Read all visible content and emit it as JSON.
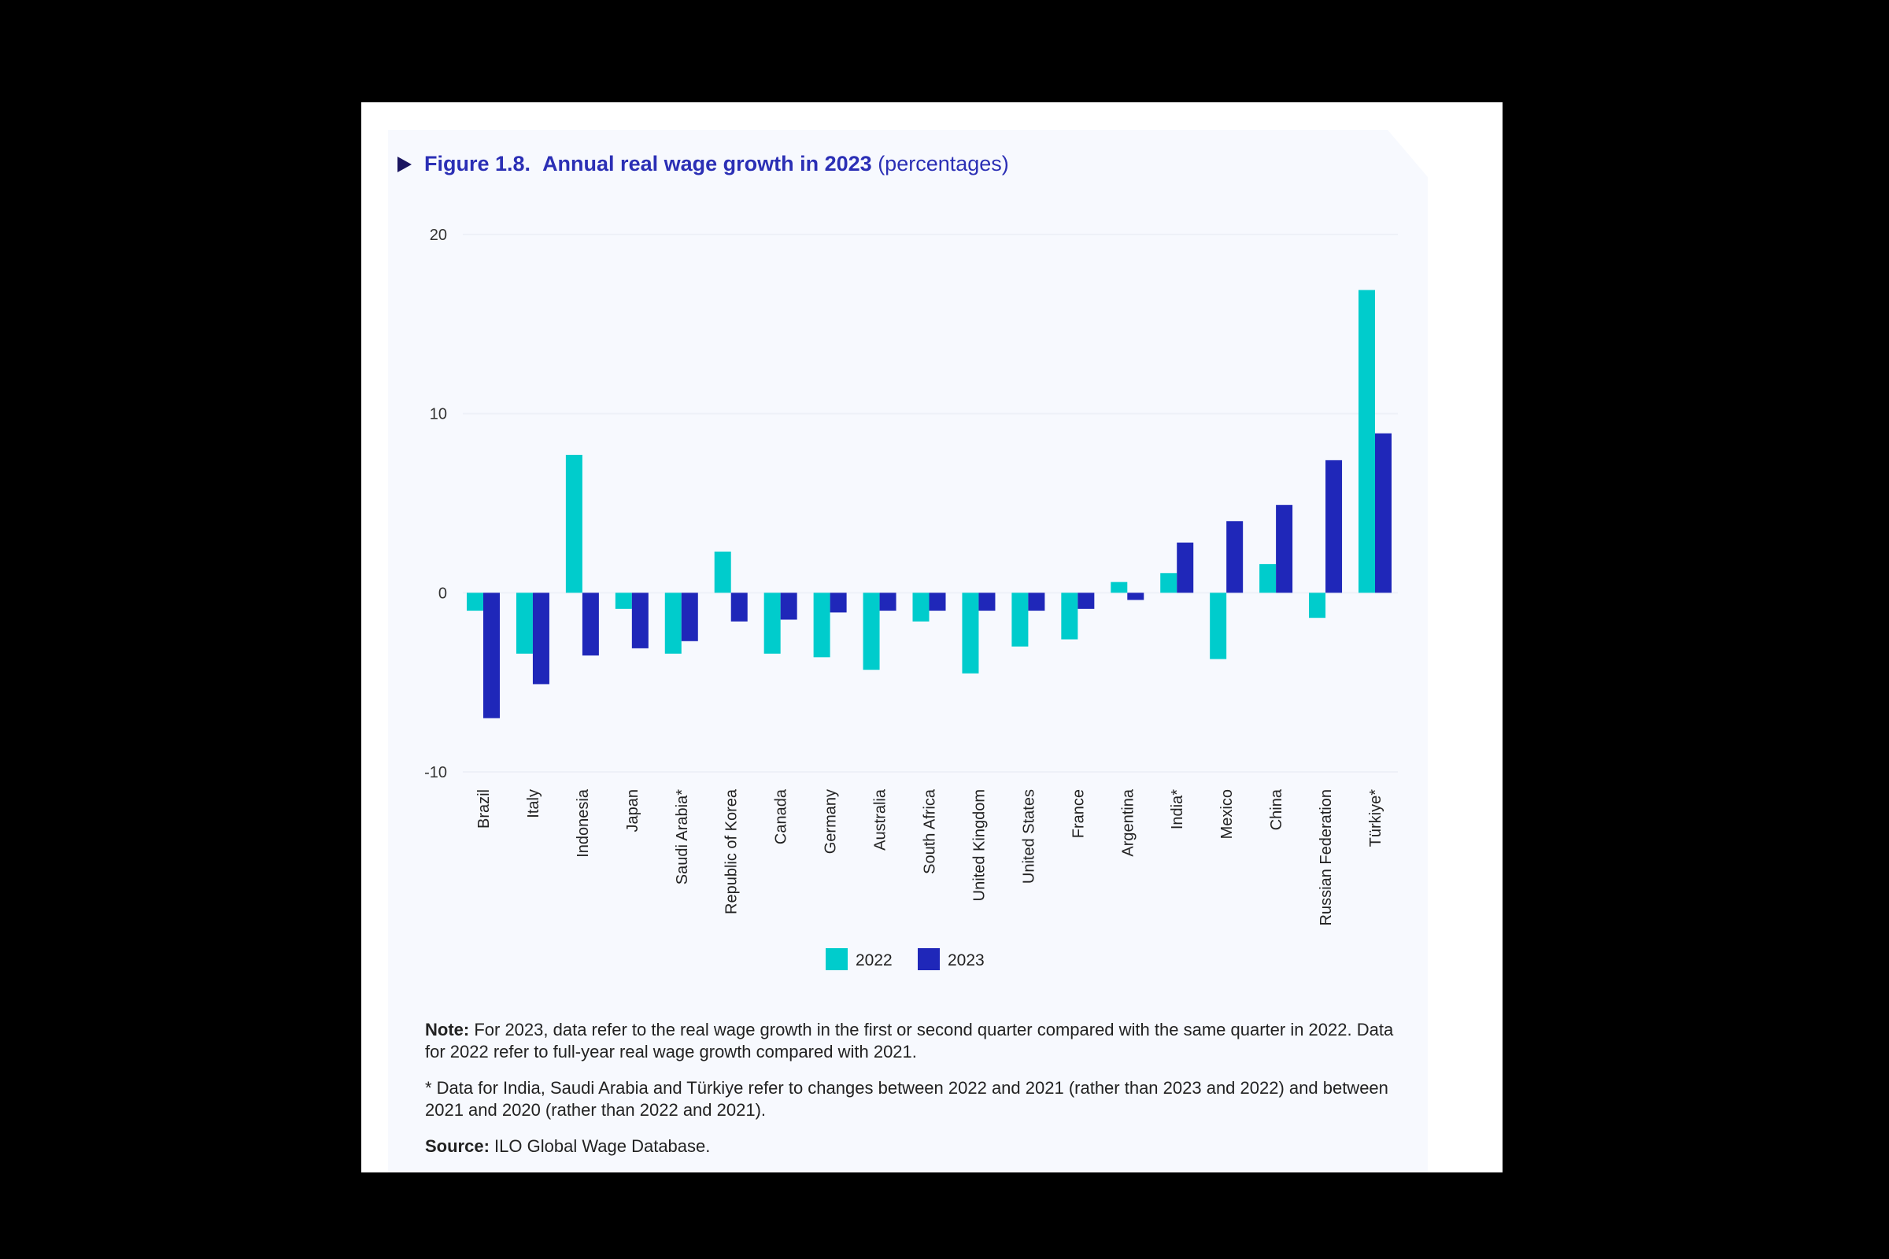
{
  "title": {
    "figure": "Figure 1.8.",
    "main": "Annual real wage growth in 2023",
    "unit": "(percentages)"
  },
  "colors": {
    "s2022": "#00cccc",
    "s2023": "#1f27b9",
    "title": "#2b2fb5"
  },
  "chart_data": {
    "type": "bar",
    "title": "Figure 1.8. Annual real wage growth in 2023 (percentages)",
    "xlabel": "",
    "ylabel": "",
    "ylim": [
      -10,
      20
    ],
    "yticks": [
      20,
      10,
      0,
      -10
    ],
    "grid": true,
    "legend": "bottom-center",
    "categories": [
      "Brazil",
      "Italy",
      "Indonesia",
      "Japan",
      "Saudi Arabia*",
      "Republic of Korea",
      "Canada",
      "Germany",
      "Australia",
      "South Africa",
      "United Kingdom",
      "United States",
      "France",
      "Argentina",
      "India*",
      "Mexico",
      "China",
      "Russian Federation",
      "Türkiye*"
    ],
    "series": [
      {
        "name": "2022",
        "values": [
          -1.0,
          -3.4,
          7.7,
          -0.9,
          -3.4,
          2.3,
          -3.4,
          -3.6,
          -4.3,
          -1.6,
          -4.5,
          -3.0,
          -2.6,
          0.6,
          1.1,
          -3.7,
          1.6,
          -1.4,
          16.9
        ]
      },
      {
        "name": "2023",
        "values": [
          -7.0,
          -5.1,
          -3.5,
          -3.1,
          -2.7,
          -1.6,
          -1.5,
          -1.1,
          -1.0,
          -1.0,
          -1.0,
          -1.0,
          -0.9,
          -0.4,
          2.8,
          4.0,
          4.9,
          7.4,
          8.9
        ]
      }
    ]
  },
  "notes": {
    "note_label": "Note:",
    "note_text": " For 2023, data refer to the real wage growth in the first or second quarter compared with the same quarter in 2022. Data for 2022 refer to full-year real wage growth compared with 2021.",
    "asterisk_text": "* Data for India, Saudi Arabia and Türkiye refer to changes between 2022 and 2021 (rather than 2023 and 2022) and between 2021 and 2020 (rather than 2022 and 2021).",
    "source_label": "Source:",
    "source_text": " ILO Global Wage Database."
  }
}
